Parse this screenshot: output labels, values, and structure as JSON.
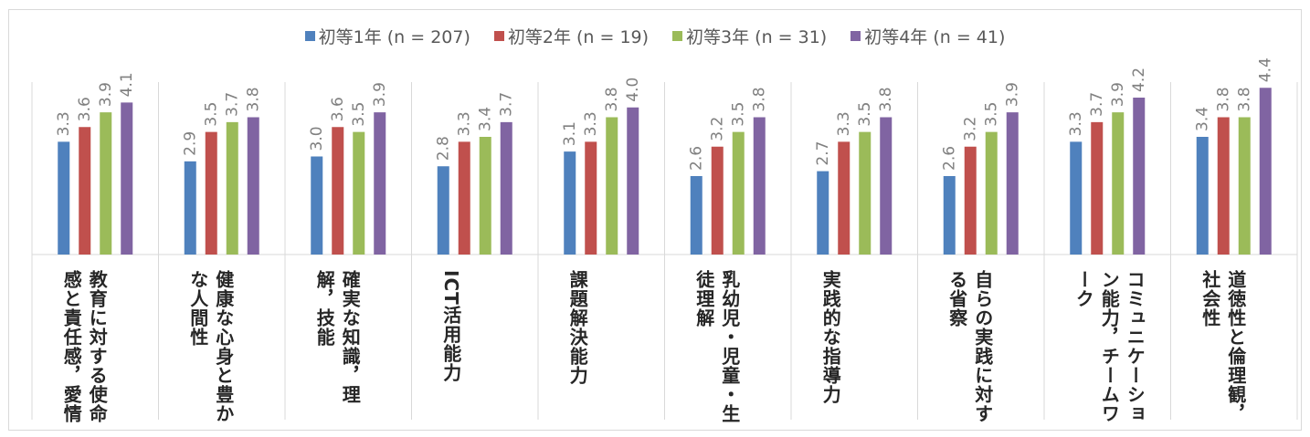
{
  "chart_data": {
    "type": "bar",
    "categories": [
      "教育に対する使命感と責任感，愛情",
      "健康な心身と豊かな人間性",
      "確実な知識，理解，技能",
      "ICT活用能力",
      "課題解決能力",
      "乳幼児・児童・生徒理解",
      "実践的な指導力",
      "自らの実践に対する省察",
      "コミュニケーション能力，チームワーク",
      "道徳性と倫理観，社会性"
    ],
    "series": [
      {
        "name": "初等1年 (n = 207)",
        "color": "#4f81bd",
        "values": [
          3.3,
          2.9,
          3.0,
          2.8,
          3.1,
          2.6,
          2.7,
          2.6,
          3.3,
          3.4
        ]
      },
      {
        "name": "初等2年 (n = 19)",
        "color": "#c0504d",
        "values": [
          3.6,
          3.5,
          3.6,
          3.3,
          3.3,
          3.2,
          3.3,
          3.2,
          3.7,
          3.8
        ]
      },
      {
        "name": "初等3年 (n = 31)",
        "color": "#9bbb59",
        "values": [
          3.9,
          3.7,
          3.5,
          3.4,
          3.8,
          3.5,
          3.5,
          3.5,
          3.9,
          3.8
        ]
      },
      {
        "name": "初等4年 (n = 41)",
        "color": "#8064a2",
        "values": [
          4.1,
          3.8,
          3.9,
          3.7,
          4.0,
          3.8,
          3.8,
          3.9,
          4.2,
          4.4
        ]
      }
    ],
    "title": "",
    "xlabel": "",
    "ylabel": "",
    "ylim": [
      1,
      5
    ],
    "grid": false,
    "legend": "top",
    "data_labels": true,
    "data_label_color": "#808080",
    "axis_color": "#d9d9d9"
  }
}
